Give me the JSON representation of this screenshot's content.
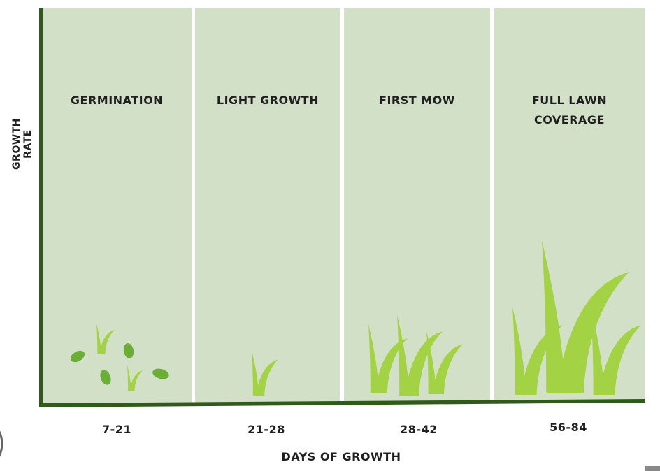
{
  "y_axis_label": "GROWTH RATE",
  "x_axis_label": "DAYS OF GROWTH",
  "colors": {
    "panel": "#d3e0c8",
    "axis": "#2f5a1a",
    "grass": "#a3d345",
    "seed": "#6aae35"
  },
  "stages": [
    {
      "title": "GERMINATION",
      "title2": "",
      "days": "7-21"
    },
    {
      "title": "LIGHT GROWTH",
      "title2": "",
      "days": "21-28"
    },
    {
      "title": "FIRST MOW",
      "title2": "",
      "days": "28-42"
    },
    {
      "title": "FULL LAWN",
      "title2": "COVERAGE",
      "days": "56-84"
    }
  ]
}
